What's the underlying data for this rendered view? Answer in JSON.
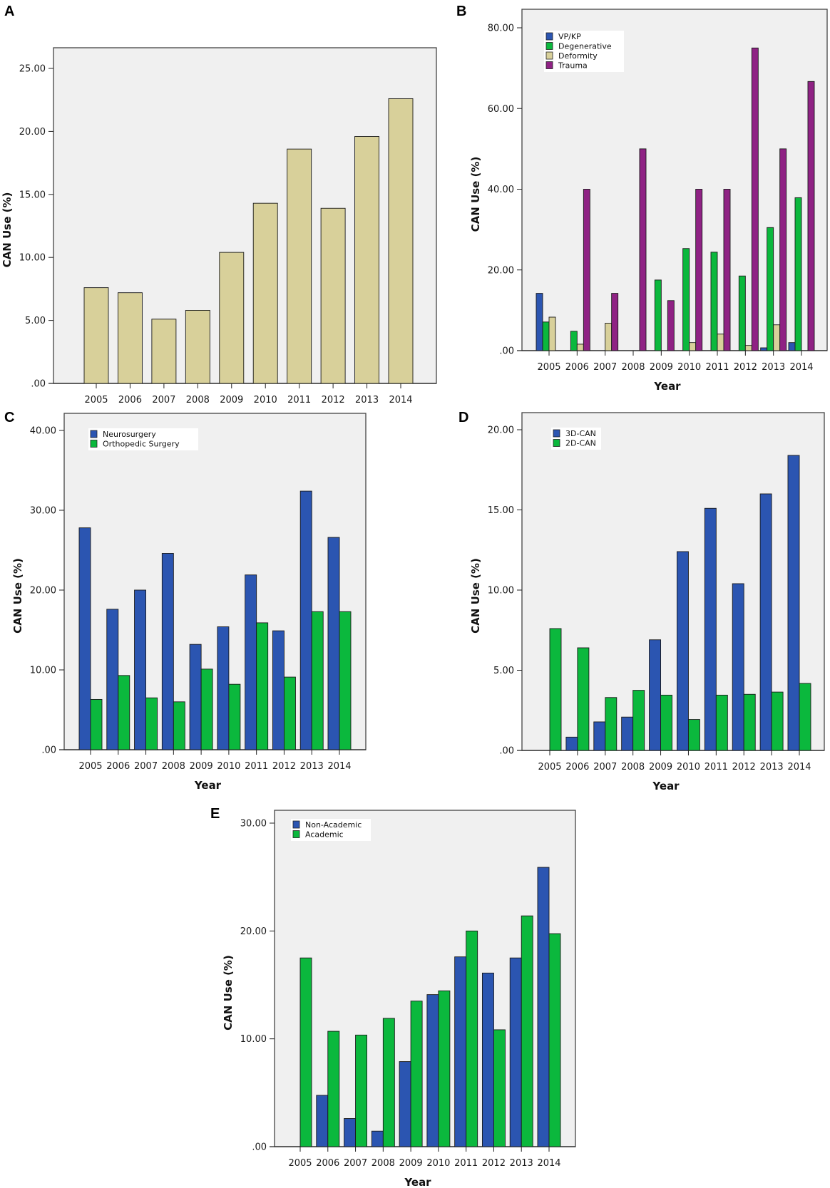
{
  "chart_data": [
    {
      "panel": "A",
      "type": "bar",
      "title": "",
      "xlabel": "Year",
      "ylabel": "CAN Use (%)",
      "ylim": [
        0,
        25
      ],
      "yticks": [
        ".00",
        "5.00",
        "10.00",
        "15.00",
        "20.00",
        "25.00"
      ],
      "ytick_values": [
        0,
        5,
        10,
        15,
        20,
        25
      ],
      "categories": [
        "2005",
        "2006",
        "2007",
        "2008",
        "2009",
        "2010",
        "2011",
        "2012",
        "2013",
        "2014"
      ],
      "legend": "none",
      "grid": false,
      "series": [
        {
          "name": "All",
          "color": "#d8d09a",
          "values": [
            7.6,
            7.2,
            5.1,
            5.8,
            10.4,
            14.3,
            18.6,
            13.9,
            19.6,
            22.6
          ]
        }
      ]
    },
    {
      "panel": "B",
      "type": "bar",
      "title": "",
      "xlabel": "Year",
      "ylabel": "CAN Use (%)",
      "ylim": [
        0,
        80
      ],
      "yticks": [
        ".00",
        "20.00",
        "40.00",
        "60.00",
        "80.00"
      ],
      "ytick_values": [
        0,
        20,
        40,
        60,
        80
      ],
      "categories": [
        "2005",
        "2006",
        "2007",
        "2008",
        "2009",
        "2010",
        "2011",
        "2012",
        "2013",
        "2014"
      ],
      "legend": "top-left",
      "grid": false,
      "series": [
        {
          "name": "VP/KP",
          "color": "#2b55b1",
          "values": [
            14.2,
            0,
            0,
            0,
            0,
            0,
            0,
            0,
            0.7,
            2.0
          ]
        },
        {
          "name": "Degenerative",
          "color": "#0bb83d",
          "values": [
            7.1,
            4.8,
            0,
            0,
            17.5,
            25.3,
            24.4,
            18.5,
            30.5,
            37.9
          ]
        },
        {
          "name": "Deformity",
          "color": "#d8d09a",
          "values": [
            8.3,
            1.6,
            6.8,
            0,
            0,
            2.0,
            4.1,
            1.3,
            6.4,
            0
          ]
        },
        {
          "name": "Trauma",
          "color": "#8f2284",
          "values": [
            0,
            40.0,
            14.2,
            50.0,
            12.4,
            40.0,
            40.0,
            75.0,
            50.0,
            66.7
          ]
        }
      ]
    },
    {
      "panel": "C",
      "type": "bar",
      "title": "",
      "xlabel": "Year",
      "ylabel": "CAN Use (%)",
      "ylim": [
        0,
        40
      ],
      "yticks": [
        ".00",
        "10.00",
        "20.00",
        "30.00",
        "40.00"
      ],
      "ytick_values": [
        0,
        10,
        20,
        30,
        40
      ],
      "categories": [
        "2005",
        "2006",
        "2007",
        "2008",
        "2009",
        "2010",
        "2011",
        "2012",
        "2013",
        "2014"
      ],
      "legend": "top-left",
      "grid": false,
      "series": [
        {
          "name": "Neurosurgery",
          "color": "#2b55b1",
          "values": [
            27.8,
            17.6,
            20.0,
            24.6,
            13.2,
            15.4,
            21.9,
            14.9,
            32.4,
            26.6
          ]
        },
        {
          "name": "Orthopedic Surgery",
          "color": "#0bb83d",
          "values": [
            6.3,
            9.3,
            6.5,
            6.0,
            10.1,
            8.2,
            15.9,
            9.1,
            17.3,
            17.3
          ]
        }
      ]
    },
    {
      "panel": "D",
      "type": "bar",
      "title": "",
      "xlabel": "Year",
      "ylabel": "CAN Use (%)",
      "ylim": [
        0,
        20
      ],
      "yticks": [
        ".00",
        "5.00",
        "10.00",
        "15.00",
        "20.00"
      ],
      "ytick_values": [
        0,
        5,
        10,
        15,
        20
      ],
      "categories": [
        "2005",
        "2006",
        "2007",
        "2008",
        "2009",
        "2010",
        "2011",
        "2012",
        "2013",
        "2014"
      ],
      "legend": "top-left",
      "grid": false,
      "series": [
        {
          "name": "3D-CAN",
          "color": "#2b55b1",
          "values": [
            0,
            0.83,
            1.78,
            2.08,
            6.9,
            12.4,
            15.1,
            10.4,
            16.0,
            18.4
          ]
        },
        {
          "name": "2D-CAN",
          "color": "#0bb83d",
          "values": [
            7.6,
            6.4,
            3.3,
            3.75,
            3.45,
            1.93,
            3.45,
            3.5,
            3.64,
            4.18
          ]
        }
      ]
    },
    {
      "panel": "E",
      "type": "bar",
      "title": "",
      "xlabel": "Year",
      "ylabel": "CAN Use (%)",
      "ylim": [
        0,
        30
      ],
      "yticks": [
        ".00",
        "10.00",
        "20.00",
        "30.00"
      ],
      "ytick_values": [
        0,
        10,
        20,
        30
      ],
      "categories": [
        "2005",
        "2006",
        "2007",
        "2008",
        "2009",
        "2010",
        "2011",
        "2012",
        "2013",
        "2014"
      ],
      "legend": "top-left",
      "grid": false,
      "series": [
        {
          "name": "Non-Academic",
          "color": "#2b55b1",
          "values": [
            0,
            4.76,
            2.61,
            1.44,
            7.89,
            14.1,
            17.6,
            16.1,
            17.5,
            25.9
          ]
        },
        {
          "name": "Academic",
          "color": "#0bb83d",
          "values": [
            17.5,
            10.7,
            10.35,
            11.9,
            13.5,
            14.45,
            20.0,
            10.84,
            21.4,
            19.75
          ]
        }
      ]
    }
  ],
  "colors": {
    "plot_background": "#f0f0f0",
    "frame": "#444444",
    "bar_outline": "#1a1a1a"
  }
}
